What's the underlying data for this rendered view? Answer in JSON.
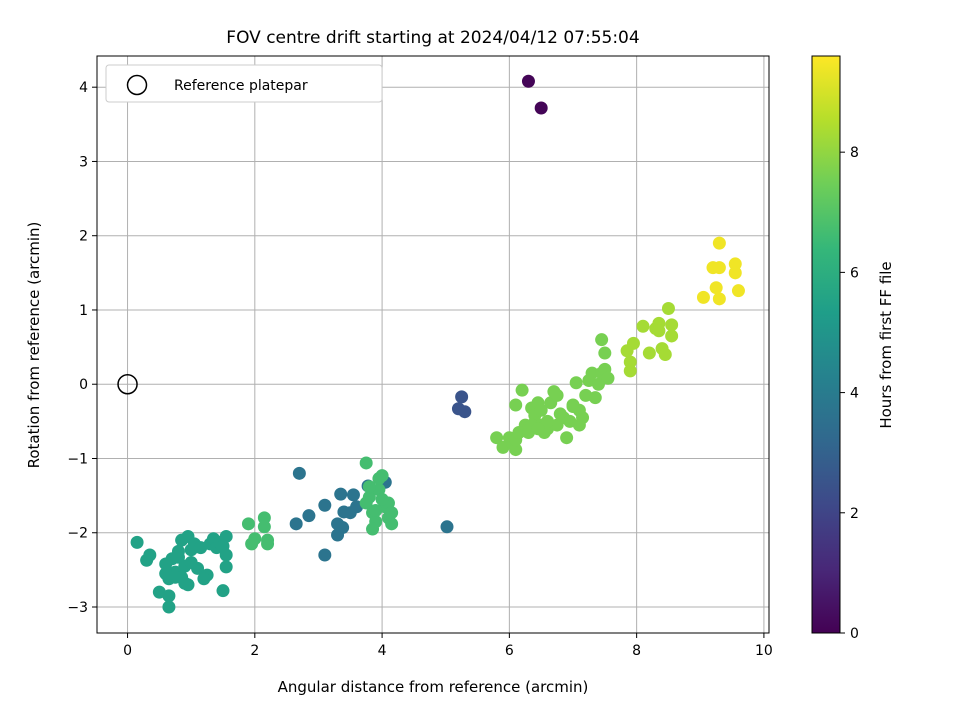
{
  "chart_data": {
    "type": "scatter",
    "title": "FOV centre drift starting at 2024/04/12 07:55:04",
    "xlabel": "Angular distance from reference (arcmin)",
    "ylabel": "Rotation from reference (arcmin)",
    "xlim": [
      -0.48,
      10.08
    ],
    "ylim": [
      -3.35,
      4.42
    ],
    "xticks": [
      0,
      2,
      4,
      6,
      8,
      10
    ],
    "yticks": [
      -3,
      -2,
      -1,
      0,
      1,
      2,
      3,
      4
    ],
    "grid": true,
    "legend": {
      "placement": "top-left",
      "entries": [
        "Reference platepar"
      ]
    },
    "colorbar": {
      "label": "Hours from first FF file",
      "range": [
        0,
        9.6
      ],
      "ticks": [
        0,
        2,
        4,
        6,
        8
      ],
      "colormap": "viridis"
    },
    "reference_point": {
      "x": 0,
      "y": 0,
      "label": "Reference platepar"
    },
    "series": [
      {
        "points": [
          [
            6.3,
            4.08,
            0.1
          ],
          [
            6.5,
            3.72,
            0.1
          ],
          [
            5.25,
            -0.17,
            2.5
          ],
          [
            5.2,
            -0.33,
            2.5
          ],
          [
            5.3,
            -0.37,
            2.5
          ],
          [
            2.7,
            -1.2,
            3.7
          ],
          [
            3.1,
            -1.63,
            3.7
          ],
          [
            3.35,
            -1.48,
            3.7
          ],
          [
            3.55,
            -1.49,
            3.7
          ],
          [
            3.4,
            -1.72,
            3.7
          ],
          [
            3.3,
            -1.88,
            3.7
          ],
          [
            3.38,
            -1.93,
            3.7
          ],
          [
            3.5,
            -1.73,
            3.7
          ],
          [
            3.3,
            -2.03,
            3.7
          ],
          [
            3.6,
            -1.65,
            3.7
          ],
          [
            2.65,
            -1.88,
            3.7
          ],
          [
            2.85,
            -1.77,
            3.7
          ],
          [
            3.1,
            -2.3,
            3.7
          ],
          [
            5.02,
            -1.92,
            3.7
          ],
          [
            4.05,
            -1.32,
            3.7
          ],
          [
            3.78,
            -1.37,
            3.7
          ],
          [
            0.15,
            -2.13,
            5.5
          ],
          [
            0.3,
            -2.37,
            5.5
          ],
          [
            0.35,
            -2.3,
            5.5
          ],
          [
            0.5,
            -2.8,
            5.5
          ],
          [
            0.6,
            -2.42,
            5.5
          ],
          [
            0.65,
            -2.62,
            5.5
          ],
          [
            0.7,
            -2.35,
            5.5
          ],
          [
            0.75,
            -2.53,
            5.5
          ],
          [
            0.8,
            -2.33,
            5.5
          ],
          [
            0.85,
            -2.1,
            5.5
          ],
          [
            0.9,
            -2.45,
            5.5
          ],
          [
            0.95,
            -2.05,
            5.5
          ],
          [
            1.0,
            -2.23,
            5.5
          ],
          [
            0.85,
            -2.6,
            5.5
          ],
          [
            0.9,
            -2.68,
            5.5
          ],
          [
            0.95,
            -2.7,
            5.5
          ],
          [
            1.05,
            -2.15,
            5.5
          ],
          [
            1.1,
            -2.48,
            5.5
          ],
          [
            1.15,
            -2.2,
            5.5
          ],
          [
            1.25,
            -2.57,
            5.5
          ],
          [
            1.3,
            -2.15,
            5.5
          ],
          [
            1.35,
            -2.08,
            5.5
          ],
          [
            1.4,
            -2.2,
            5.5
          ],
          [
            1.45,
            -2.13,
            5.5
          ],
          [
            1.5,
            -2.18,
            5.5
          ],
          [
            1.55,
            -2.05,
            5.5
          ],
          [
            1.55,
            -2.3,
            5.5
          ],
          [
            1.55,
            -2.46,
            5.5
          ],
          [
            1.5,
            -2.78,
            5.5
          ],
          [
            0.65,
            -3.0,
            5.5
          ],
          [
            0.65,
            -2.85,
            5.5
          ],
          [
            0.6,
            -2.55,
            5.5
          ],
          [
            0.75,
            -2.6,
            5.5
          ],
          [
            1.2,
            -2.62,
            5.5
          ],
          [
            1.0,
            -2.4,
            5.5
          ],
          [
            0.8,
            -2.25,
            5.5
          ],
          [
            1.9,
            -1.88,
            6.7
          ],
          [
            2.0,
            -2.08,
            6.7
          ],
          [
            1.95,
            -2.15,
            6.7
          ],
          [
            2.15,
            -1.8,
            6.7
          ],
          [
            2.15,
            -1.92,
            6.7
          ],
          [
            2.2,
            -2.1,
            6.7
          ],
          [
            2.2,
            -2.15,
            6.7
          ],
          [
            3.75,
            -1.06,
            6.7
          ],
          [
            3.8,
            -1.52,
            6.7
          ],
          [
            3.85,
            -1.73,
            6.7
          ],
          [
            3.9,
            -1.85,
            6.7
          ],
          [
            3.95,
            -1.42,
            6.7
          ],
          [
            4.0,
            -1.23,
            6.7
          ],
          [
            4.05,
            -1.65,
            6.7
          ],
          [
            4.1,
            -1.6,
            6.7
          ],
          [
            4.1,
            -1.8,
            6.7
          ],
          [
            4.15,
            -1.88,
            6.7
          ],
          [
            4.15,
            -1.73,
            6.7
          ],
          [
            3.85,
            -1.95,
            6.7
          ],
          [
            3.8,
            -1.38,
            6.7
          ],
          [
            3.95,
            -1.27,
            6.7
          ],
          [
            3.9,
            -1.7,
            6.7
          ],
          [
            4.0,
            -1.55,
            6.7
          ],
          [
            3.75,
            -1.6,
            6.7
          ],
          [
            5.8,
            -0.72,
            7.6
          ],
          [
            5.9,
            -0.85,
            7.6
          ],
          [
            6.0,
            -0.72,
            7.6
          ],
          [
            6.05,
            -0.8,
            7.6
          ],
          [
            6.1,
            -0.88,
            7.6
          ],
          [
            6.1,
            -0.75,
            7.6
          ],
          [
            6.15,
            -0.65,
            7.6
          ],
          [
            6.1,
            -0.28,
            7.6
          ],
          [
            6.2,
            -0.08,
            7.6
          ],
          [
            6.25,
            -0.55,
            7.6
          ],
          [
            6.3,
            -0.6,
            7.6
          ],
          [
            6.3,
            -0.65,
            7.6
          ],
          [
            6.35,
            -0.32,
            7.6
          ],
          [
            6.4,
            -0.42,
            7.6
          ],
          [
            6.45,
            -0.25,
            7.6
          ],
          [
            6.5,
            -0.55,
            7.6
          ],
          [
            6.5,
            -0.35,
            7.6
          ],
          [
            6.55,
            -0.65,
            7.6
          ],
          [
            6.6,
            -0.6,
            7.6
          ],
          [
            6.65,
            -0.25,
            7.6
          ],
          [
            6.7,
            -0.1,
            7.6
          ],
          [
            6.75,
            -0.15,
            7.6
          ],
          [
            6.75,
            -0.55,
            7.6
          ],
          [
            6.8,
            -0.4,
            7.6
          ],
          [
            6.85,
            -0.45,
            7.6
          ],
          [
            6.9,
            -0.72,
            7.6
          ],
          [
            6.95,
            -0.5,
            7.6
          ],
          [
            7.0,
            -0.28,
            7.6
          ],
          [
            7.05,
            0.02,
            7.6
          ],
          [
            7.1,
            -0.35,
            7.6
          ],
          [
            7.1,
            -0.55,
            7.6
          ],
          [
            7.15,
            -0.45,
            7.6
          ],
          [
            7.2,
            -0.15,
            7.6
          ],
          [
            7.25,
            0.05,
            7.6
          ],
          [
            7.3,
            0.15,
            7.6
          ],
          [
            7.35,
            -0.18,
            7.6
          ],
          [
            7.4,
            0.0,
            7.6
          ],
          [
            7.45,
            0.15,
            7.6
          ],
          [
            7.45,
            0.6,
            7.6
          ],
          [
            7.5,
            0.42,
            7.6
          ],
          [
            7.5,
            0.2,
            7.6
          ],
          [
            7.55,
            0.08,
            7.6
          ],
          [
            6.55,
            -0.58,
            7.6
          ],
          [
            6.6,
            -0.5,
            7.6
          ],
          [
            6.35,
            -0.55,
            7.6
          ],
          [
            6.45,
            -0.6,
            7.6
          ],
          [
            7.0,
            -0.3,
            7.6
          ],
          [
            7.85,
            0.45,
            8.3
          ],
          [
            7.9,
            0.3,
            8.3
          ],
          [
            7.9,
            0.18,
            8.3
          ],
          [
            7.95,
            0.55,
            8.3
          ],
          [
            8.1,
            0.78,
            8.3
          ],
          [
            8.2,
            0.42,
            8.3
          ],
          [
            8.3,
            0.75,
            8.3
          ],
          [
            8.35,
            0.82,
            8.3
          ],
          [
            8.4,
            0.48,
            8.3
          ],
          [
            8.45,
            0.4,
            8.3
          ],
          [
            8.5,
            1.02,
            8.3
          ],
          [
            8.55,
            0.8,
            8.3
          ],
          [
            8.55,
            0.65,
            8.3
          ],
          [
            8.35,
            0.72,
            8.3
          ],
          [
            9.05,
            1.17,
            9.4
          ],
          [
            9.2,
            1.57,
            9.4
          ],
          [
            9.25,
            1.3,
            9.4
          ],
          [
            9.3,
            1.9,
            9.4
          ],
          [
            9.3,
            1.15,
            9.4
          ],
          [
            9.3,
            1.57,
            9.4
          ],
          [
            9.55,
            1.62,
            9.4
          ],
          [
            9.55,
            1.5,
            9.4
          ],
          [
            9.6,
            1.26,
            9.4
          ]
        ]
      }
    ]
  }
}
